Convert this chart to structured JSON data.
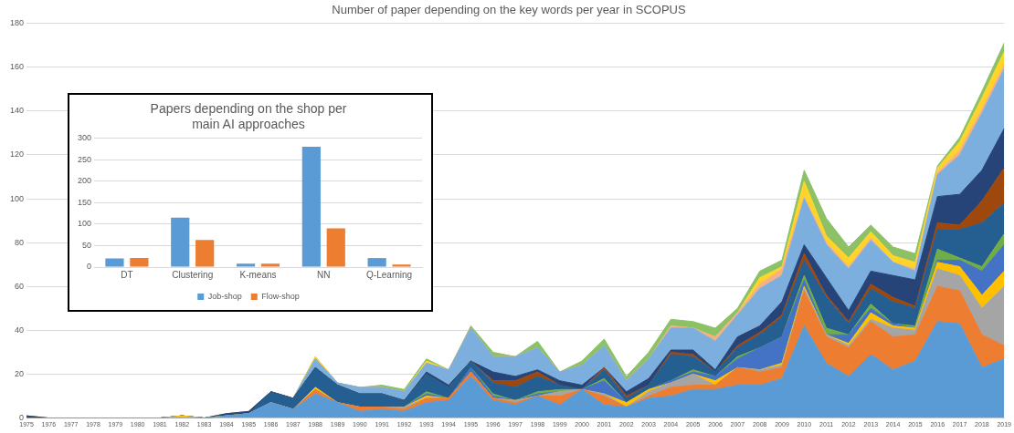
{
  "chart_data": [
    {
      "type": "area",
      "title": "Number of paper depending on the key words per year in SCOPUS",
      "stacked": true,
      "grid": "y",
      "ylim": [
        0,
        180
      ],
      "yticks": [
        0,
        20,
        40,
        60,
        80,
        100,
        120,
        140,
        160,
        180
      ],
      "categories": [
        "1975",
        "1976",
        "1977",
        "1978",
        "1979",
        "1980",
        "1981",
        "1982",
        "1983",
        "1984",
        "1985",
        "1986",
        "1987",
        "1988",
        "1989",
        "1990",
        "1991",
        "1992",
        "1993",
        "1994",
        "1995",
        "1996",
        "1997",
        "1998",
        "1999",
        "2000",
        "2001",
        "2002",
        "2003",
        "2004",
        "2005",
        "2006",
        "2007",
        "2008",
        "2009",
        "2010",
        "2011",
        "2012",
        "2013",
        "2014",
        "2015",
        "2016",
        "2017",
        "2018",
        "2019"
      ],
      "series": [
        {
          "color": "#5b9bd5",
          "values": [
            0,
            0,
            0,
            0,
            0,
            0,
            0,
            0,
            0,
            1,
            2,
            7,
            4,
            11,
            7,
            3,
            4,
            3,
            7,
            8,
            19,
            8,
            6,
            10,
            6,
            13,
            6,
            5,
            9,
            10,
            13,
            13,
            15,
            15,
            18,
            42,
            25,
            19,
            29,
            22,
            26,
            44,
            43,
            23,
            27
          ]
        },
        {
          "color": "#ed7d31",
          "values": [
            0,
            0,
            0,
            0,
            0,
            0,
            0,
            0,
            0,
            0,
            0,
            0,
            0,
            2,
            0,
            2,
            1,
            1,
            2,
            1,
            2,
            1,
            1,
            0,
            4,
            0,
            4,
            0,
            1,
            4,
            2,
            2,
            8,
            6,
            5,
            16,
            12,
            13,
            15,
            15,
            12,
            16,
            15,
            15,
            6
          ]
        },
        {
          "color": "#a5a5a5",
          "values": [
            0,
            0,
            0,
            0,
            0,
            0,
            0,
            0,
            0,
            0,
            0,
            0,
            0,
            0,
            0,
            0,
            0,
            1,
            0,
            0,
            0,
            0,
            1,
            0,
            2,
            0,
            1,
            0,
            2,
            2,
            5,
            0,
            0,
            1,
            1,
            1,
            1,
            1,
            1,
            4,
            2,
            8,
            7,
            12,
            27
          ]
        },
        {
          "color": "#ffc000",
          "values": [
            0,
            0,
            0,
            0,
            0,
            0,
            0,
            1,
            0,
            0,
            0,
            0,
            0,
            1,
            0,
            0,
            0,
            0,
            1,
            0,
            0,
            0,
            0,
            0,
            0,
            0,
            0,
            2,
            1,
            0,
            0,
            2,
            0,
            0,
            1,
            1,
            0,
            1,
            3,
            1,
            1,
            3,
            4,
            6,
            7
          ]
        },
        {
          "color": "#4472c4",
          "values": [
            0,
            0,
            0,
            0,
            0,
            0,
            0,
            0,
            0,
            0,
            0,
            0,
            0,
            0,
            0,
            0,
            0,
            0,
            1,
            0,
            2,
            1,
            0,
            1,
            0,
            0,
            6,
            0,
            0,
            1,
            1,
            2,
            4,
            10,
            12,
            3,
            0,
            4,
            2,
            1,
            0,
            1,
            3,
            11,
            12
          ]
        },
        {
          "color": "#70ad47",
          "values": [
            0,
            0,
            0,
            0,
            0,
            0,
            0,
            0,
            0,
            0,
            0,
            0,
            0,
            0,
            0,
            0,
            0,
            0,
            1,
            0,
            0,
            1,
            0,
            1,
            1,
            0,
            1,
            0,
            0,
            0,
            1,
            0,
            1,
            0,
            0,
            2,
            3,
            0,
            2,
            0,
            1,
            5,
            1,
            2,
            5
          ]
        },
        {
          "color": "#255e91",
          "values": [
            0,
            0,
            0,
            0,
            0,
            0,
            0,
            0,
            0,
            0,
            0,
            5,
            5,
            9,
            8,
            6,
            6,
            3,
            8,
            5,
            3,
            5,
            6,
            7,
            2,
            0,
            4,
            2,
            2,
            12,
            6,
            2,
            4,
            6,
            9,
            7,
            14,
            5,
            7,
            10,
            8,
            9,
            13,
            20,
            14
          ]
        },
        {
          "color": "#9e480e",
          "values": [
            0,
            0,
            0,
            0,
            0,
            0,
            0,
            0,
            0,
            0,
            0,
            0,
            0,
            0,
            0,
            0,
            0,
            0,
            0,
            0,
            0,
            1,
            3,
            2,
            0,
            0,
            1,
            1,
            0,
            1,
            1,
            0,
            1,
            1,
            1,
            3,
            1,
            1,
            2,
            2,
            1,
            3,
            2,
            10,
            16
          ]
        },
        {
          "color": "#264478",
          "values": [
            1,
            0,
            0,
            0,
            0,
            0,
            0,
            0,
            0,
            1,
            1,
            0,
            0,
            0,
            0,
            0,
            0,
            0,
            1,
            1,
            0,
            4,
            2,
            1,
            2,
            2,
            0,
            2,
            3,
            1,
            2,
            1,
            4,
            3,
            6,
            4,
            8,
            5,
            6,
            10,
            12,
            12,
            14,
            14,
            18
          ]
        },
        {
          "color": "#7cafdd",
          "values": [
            0,
            0,
            0,
            0,
            0,
            0,
            0,
            0,
            0,
            0,
            0,
            0,
            0,
            4,
            1,
            3,
            3,
            4,
            4,
            7,
            15,
            7,
            9,
            10,
            4,
            9,
            10,
            5,
            9,
            10,
            10,
            13,
            10,
            17,
            12,
            21,
            15,
            19,
            14,
            6,
            4,
            10,
            18,
            26,
            27
          ]
        },
        {
          "color": "#f4b183",
          "values": [
            0,
            0,
            0,
            0,
            0,
            0,
            0,
            0,
            0,
            0,
            0,
            0,
            0,
            0,
            0,
            0,
            0,
            0,
            0,
            0,
            0,
            0,
            0,
            0,
            0,
            0,
            0,
            0,
            0,
            1,
            0,
            2,
            1,
            2,
            3,
            1,
            1,
            1,
            1,
            0,
            1,
            1,
            2,
            2,
            2
          ]
        },
        {
          "color": "#ffd42a",
          "values": [
            0,
            0,
            0,
            0,
            0,
            0,
            0,
            0,
            0,
            0,
            0,
            0,
            0,
            1,
            0,
            0,
            0,
            0,
            1,
            0,
            0,
            0,
            0,
            0,
            0,
            0,
            0,
            0,
            0,
            0,
            0,
            0,
            0,
            3,
            1,
            7,
            3,
            4,
            3,
            3,
            3,
            2,
            4,
            5,
            6
          ]
        },
        {
          "color": "#8cc168",
          "values": [
            0,
            0,
            0,
            0,
            0,
            0,
            0,
            0,
            0,
            0,
            0,
            0,
            0,
            0,
            0,
            0,
            1,
            1,
            1,
            0,
            1,
            2,
            0,
            3,
            0,
            2,
            3,
            2,
            3,
            3,
            3,
            4,
            2,
            3,
            3,
            5,
            8,
            5,
            3,
            4,
            4,
            1,
            2,
            3,
            4
          ]
        }
      ]
    },
    {
      "type": "bar",
      "title": "Papers depending on the shop per main AI approaches",
      "grid": "y",
      "legend": "bottom",
      "ylim": [
        0,
        300
      ],
      "yticks": [
        0,
        50,
        100,
        150,
        200,
        250,
        300
      ],
      "categories": [
        "DT",
        "Clustering",
        "K-means",
        "NN",
        "Q-Learning"
      ],
      "series": [
        {
          "name": "Job-shop",
          "color": "#5b9bd5",
          "values": [
            20,
            115,
            8,
            280,
            21
          ]
        },
        {
          "name": "Flow-shop",
          "color": "#ed7d31",
          "values": [
            21,
            63,
            8,
            90,
            6
          ]
        }
      ]
    }
  ]
}
